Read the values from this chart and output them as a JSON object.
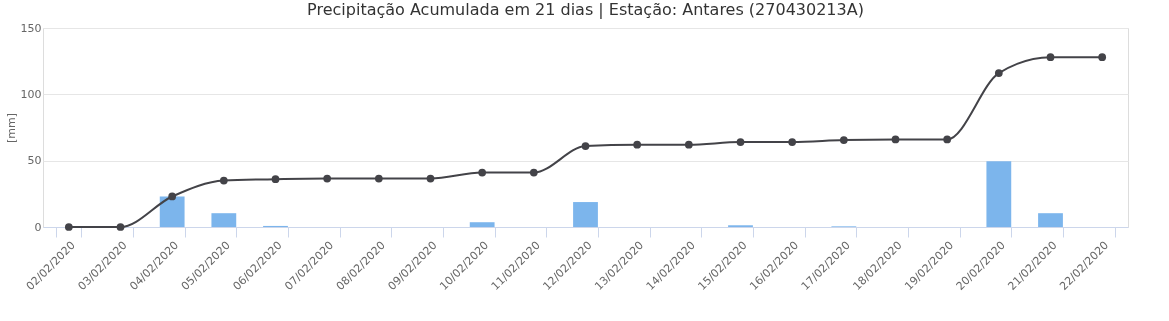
{
  "chart_data": {
    "type": "bar",
    "title": "Precipitação Acumulada em 21 dias | Estação: Antares (270430213A)",
    "ylabel": "[mm]",
    "categories": [
      "02/02/2020",
      "03/02/2020",
      "04/02/2020",
      "05/02/2020",
      "06/02/2020",
      "07/02/2020",
      "08/02/2020",
      "09/02/2020",
      "10/02/2020",
      "11/02/2020",
      "12/02/2020",
      "13/02/2020",
      "14/02/2020",
      "15/02/2020",
      "16/02/2020",
      "17/02/2020",
      "18/02/2020",
      "19/02/2020",
      "20/02/2020",
      "21/02/2020",
      "22/02/2020"
    ],
    "series": [
      {
        "color": "#7cb5ec",
        "values": [
          0,
          0,
          23,
          10.4,
          0.8,
          0,
          0,
          0,
          3.6,
          0,
          18.8,
          0,
          0,
          1.3,
          0,
          0.5,
          0,
          0,
          49.5,
          10.4,
          0
        ]
      },
      {
        "type": "line",
        "color": "#434348",
        "values": [
          0,
          0,
          23,
          35,
          36,
          36.5,
          36.5,
          36.5,
          41,
          41,
          61,
          62,
          62,
          64,
          64,
          65.5,
          66,
          66,
          116,
          128,
          128
        ]
      }
    ],
    "ylim": [
      0,
      150
    ],
    "yticks": [
      0,
      50,
      100,
      150
    ],
    "grid": "y",
    "marker": "circle",
    "line_style": "solid"
  }
}
